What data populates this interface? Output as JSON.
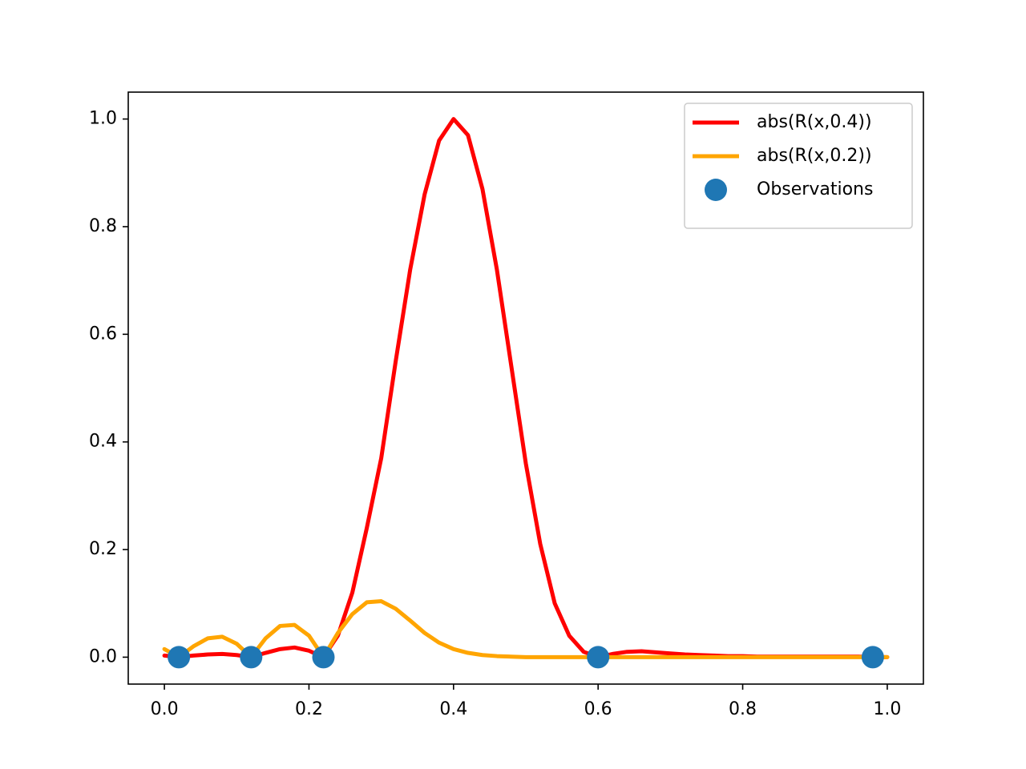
{
  "chart_data": {
    "type": "line",
    "xlim": [
      -0.05,
      1.05
    ],
    "ylim": [
      -0.05,
      1.05
    ],
    "xticks": [
      {
        "value": 0,
        "label": "0.0"
      },
      0.2,
      0.4,
      0.6,
      0.8,
      {
        "value": 1,
        "label": "1.0"
      }
    ],
    "yticks": [
      {
        "value": 0,
        "label": "0.0"
      },
      0.2,
      0.4,
      0.6,
      0.8,
      {
        "value": 1,
        "label": "1.0"
      }
    ],
    "legend": "upper right",
    "series": [
      {
        "name": "abs(R(x,0.4))",
        "type": "line",
        "color": "#ff0000",
        "x": [
          0,
          0.02,
          0.04,
          0.06,
          0.08,
          0.1,
          0.12,
          0.14,
          0.16,
          0.18,
          0.2,
          0.22,
          0.24,
          0.26,
          0.28,
          0.3,
          0.32,
          0.34,
          0.36,
          0.38,
          0.4,
          0.42,
          0.44,
          0.46,
          0.48,
          0.5,
          0.52,
          0.54,
          0.56,
          0.58,
          0.6,
          0.62,
          0.64,
          0.66,
          0.68,
          0.7,
          0.72,
          0.74,
          0.76,
          0.78,
          0.8,
          0.82,
          0.84,
          0.86,
          0.88,
          0.9,
          0.92,
          0.94,
          0.96,
          0.98,
          1
        ],
        "values": [
          0.003,
          0,
          0.003,
          0.005,
          0.006,
          0.004,
          0,
          0.008,
          0.015,
          0.018,
          0.012,
          0,
          0.04,
          0.12,
          0.24,
          0.37,
          0.55,
          0.72,
          0.86,
          0.96,
          1.0,
          0.97,
          0.87,
          0.72,
          0.54,
          0.36,
          0.21,
          0.1,
          0.04,
          0.01,
          0,
          0.006,
          0.01,
          0.011,
          0.009,
          0.007,
          0.005,
          0.004,
          0.003,
          0.002,
          0.002,
          0.001,
          0.001,
          0.001,
          0.001,
          0.001,
          0.001,
          0.001,
          0.001,
          0,
          0
        ]
      },
      {
        "name": "abs(R(x,0.2))",
        "type": "line",
        "color": "#ffa500",
        "x": [
          0,
          0.02,
          0.04,
          0.06,
          0.08,
          0.1,
          0.12,
          0.14,
          0.16,
          0.18,
          0.2,
          0.22,
          0.24,
          0.26,
          0.28,
          0.3,
          0.32,
          0.34,
          0.36,
          0.38,
          0.4,
          0.42,
          0.44,
          0.46,
          0.48,
          0.5,
          0.6,
          0.7,
          0.8,
          0.9,
          1
        ],
        "values": [
          0.015,
          0,
          0.02,
          0.035,
          0.038,
          0.025,
          0,
          0.035,
          0.058,
          0.06,
          0.04,
          0,
          0.045,
          0.08,
          0.102,
          0.104,
          0.09,
          0.068,
          0.045,
          0.027,
          0.015,
          0.008,
          0.004,
          0.002,
          0.001,
          0,
          0,
          0,
          0,
          0,
          0
        ]
      },
      {
        "name": "Observations",
        "type": "scatter",
        "color": "#1f77b4",
        "x": [
          0.02,
          0.12,
          0.22,
          0.6,
          0.98
        ],
        "values": [
          0,
          0,
          0,
          0,
          0
        ]
      }
    ]
  }
}
